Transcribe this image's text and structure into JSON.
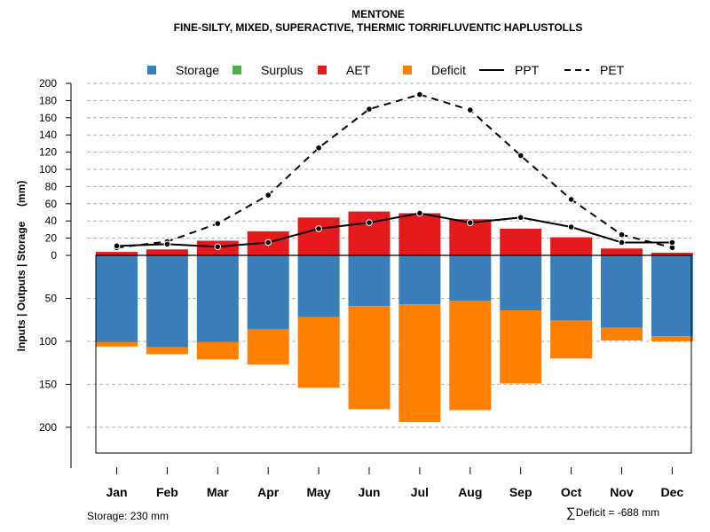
{
  "title": "MENTONE",
  "subtitle": "FINE-SILTY, MIXED, SUPERACTIVE, THERMIC TORRIFLUVENTIC HAPLUSTOLLS",
  "footer": {
    "storage_note": "Storage: 230 mm",
    "deficit_symbol": "∑",
    "deficit_note": "Deficit = -688 mm"
  },
  "chart_data": {
    "type": "bar",
    "title": "MENTONE",
    "subtitle": "FINE-SILTY, MIXED, SUPERACTIVE, THERMIC TORRIFLUVENTIC HAPLUSTOLLS",
    "ylabel": "Inputs | Outputs | Storage     (mm)",
    "xlabel": "",
    "categories": [
      "Jan",
      "Feb",
      "Mar",
      "Apr",
      "May",
      "Jun",
      "Jul",
      "Aug",
      "Sep",
      "Oct",
      "Nov",
      "Dec"
    ],
    "upper_ylim": [
      0,
      200
    ],
    "upper_ticks": [
      0,
      20,
      40,
      60,
      80,
      100,
      120,
      140,
      160,
      180,
      200
    ],
    "lower_ylim": [
      0,
      230
    ],
    "lower_ticks": [
      50,
      100,
      150,
      200
    ],
    "colors": {
      "Storage": "#3a7fba",
      "Surplus": "#4daf4a",
      "AET": "#e41a1c",
      "Deficit": "#ff7f00",
      "grid": "#b0b0b0"
    },
    "legend": [
      "Storage",
      "Surplus",
      "AET",
      "Deficit",
      "PPT",
      "PET"
    ],
    "series": [
      {
        "name": "AET",
        "kind": "bar-up",
        "values": [
          4,
          7,
          17,
          28,
          44,
          51,
          49,
          42,
          31,
          21,
          8,
          3
        ]
      },
      {
        "name": "Storage",
        "kind": "bar-down",
        "values": [
          101,
          107,
          101,
          86,
          72,
          59,
          57,
          53,
          64,
          76,
          84,
          94
        ]
      },
      {
        "name": "Deficit",
        "kind": "bar-down-stacked",
        "values": [
          5,
          8,
          20,
          41,
          82,
          120,
          137,
          127,
          85,
          44,
          15,
          6
        ]
      },
      {
        "name": "Surplus",
        "kind": "bar-up",
        "values": [
          0,
          0,
          0,
          0,
          0,
          0,
          0,
          0,
          0,
          0,
          0,
          0
        ]
      },
      {
        "name": "PPT",
        "kind": "line-solid",
        "values": [
          11,
          13,
          10,
          15,
          31,
          38,
          49,
          38,
          44,
          33,
          15,
          15
        ]
      },
      {
        "name": "PET",
        "kind": "line-dashed",
        "values": [
          9,
          16,
          37,
          70,
          125,
          170,
          187,
          169,
          116,
          65,
          24,
          9
        ]
      }
    ]
  }
}
